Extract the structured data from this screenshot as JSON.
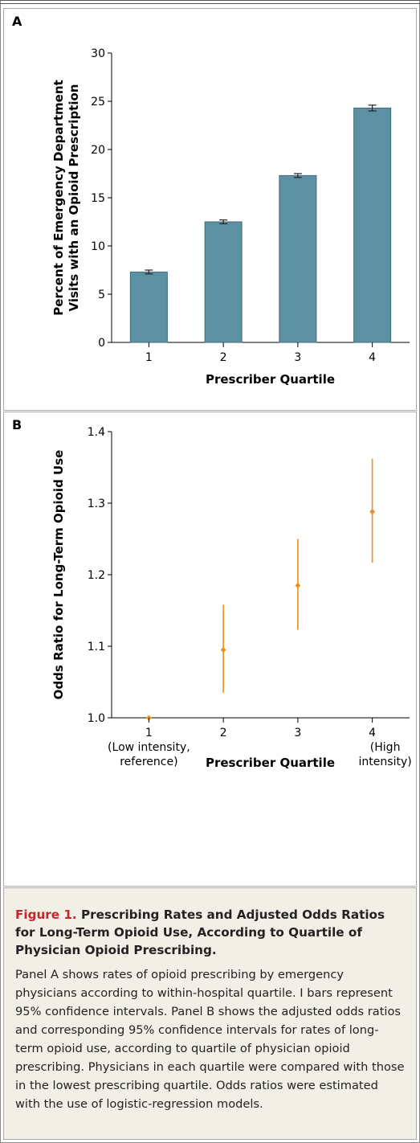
{
  "panels": {
    "a_label": "A",
    "b_label": "B"
  },
  "chart_data": [
    {
      "type": "bar",
      "panel": "A",
      "categories": [
        "1",
        "2",
        "3",
        "4"
      ],
      "values": [
        7.3,
        12.5,
        17.3,
        24.3
      ],
      "error_low": [
        7.1,
        12.3,
        17.1,
        24.0
      ],
      "error_high": [
        7.5,
        12.7,
        17.5,
        24.6
      ],
      "xlabel": "Prescriber Quartile",
      "ylabel": [
        "Percent of Emergency Department",
        "Visits with an Opioid Prescription"
      ],
      "ylim": [
        0,
        30
      ],
      "yticks": [
        0,
        5,
        10,
        15,
        20,
        25,
        30
      ],
      "grid": false,
      "bar_color": "#5e90a4",
      "error_color": "#222222"
    },
    {
      "type": "scatter",
      "panel": "B",
      "categories": [
        "1",
        "2",
        "3",
        "4"
      ],
      "sublabels": [
        [
          "(Low intensity,",
          "reference)"
        ],
        [
          "",
          ""
        ],
        [
          "",
          ""
        ],
        [
          "(High",
          "intensity)"
        ]
      ],
      "values": [
        1.0,
        1.095,
        1.185,
        1.288
      ],
      "ci_low": [
        1.0,
        1.035,
        1.123,
        1.217
      ],
      "ci_high": [
        1.0,
        1.158,
        1.25,
        1.362
      ],
      "xlabel": "Prescriber Quartile",
      "ylabel": "Odds Ratio for Long-Term Opioid Use",
      "ylim": [
        1.0,
        1.4
      ],
      "yticks": [
        "1.0",
        "1.1",
        "1.2",
        "1.3",
        "1.4"
      ],
      "grid": false,
      "point_color": "#e8921e"
    }
  ],
  "caption": {
    "figure_label": "Figure 1.",
    "title": "Prescribing Rates and Adjusted Odds Ratios for Long-Term Opioid Use, According to Quartile of Physician Opioid Prescribing.",
    "body": "Panel A shows rates of opioid prescribing by emergency physicians according to within-hospital quartile. I bars represent 95% confidence intervals. Panel B shows the adjusted odds ratios and corresponding 95% confidence intervals for rates of long-term opioid use, according to quartile of physician opioid prescribing. Physicians in each quartile were compared with those in the lowest prescribing quartile. Odds ratios were estimated with the use of logistic-regression models."
  }
}
